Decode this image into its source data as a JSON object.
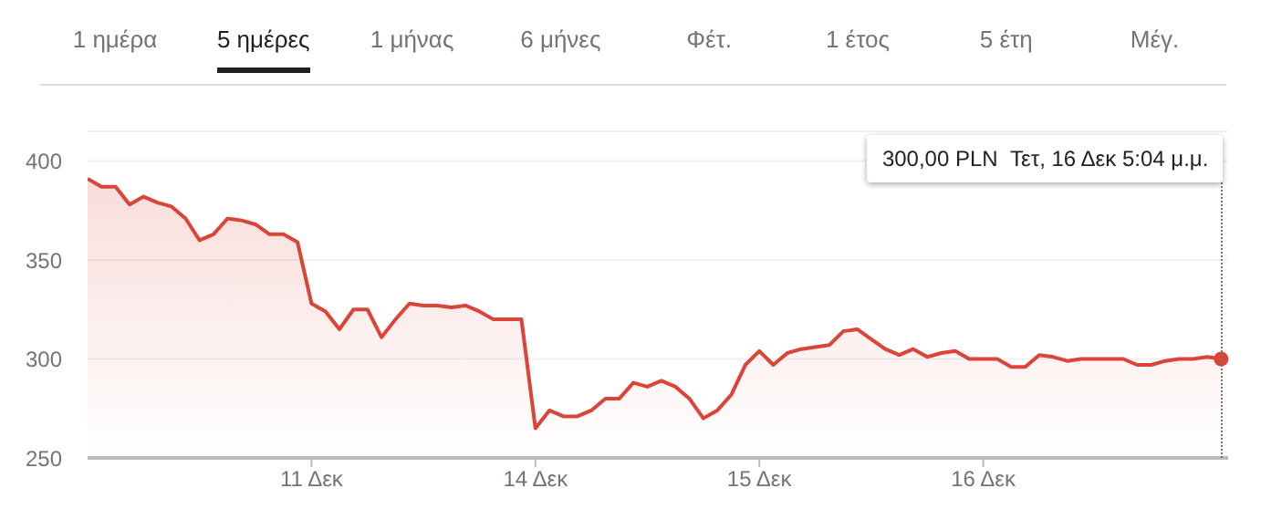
{
  "chart_data": {
    "type": "area",
    "categories": [
      null,
      null,
      null,
      null,
      null,
      null,
      null,
      null,
      null,
      null,
      null,
      null,
      null,
      null,
      null,
      null,
      "11 Δεκ",
      null,
      null,
      null,
      null,
      null,
      null,
      null,
      null,
      null,
      null,
      null,
      null,
      null,
      null,
      null,
      "14 Δεκ",
      null,
      null,
      null,
      null,
      null,
      null,
      null,
      null,
      null,
      null,
      null,
      null,
      null,
      null,
      null,
      "15 Δεκ",
      null,
      null,
      null,
      null,
      null,
      null,
      null,
      null,
      null,
      null,
      null,
      null,
      null,
      null,
      null,
      "16 Δεκ",
      null,
      null,
      null,
      null,
      null,
      null,
      null,
      null,
      null,
      null,
      null,
      null,
      null,
      null,
      null,
      null,
      null
    ],
    "series": [
      {
        "color": "#db4437",
        "values": [
          391,
          387,
          387,
          378,
          382,
          379,
          377,
          371,
          360,
          363,
          371,
          370,
          368,
          363,
          363,
          359,
          328,
          324,
          315,
          325,
          325,
          311,
          320,
          328,
          327,
          327,
          326,
          327,
          324,
          320,
          320,
          320,
          265,
          274,
          271,
          271,
          274,
          280,
          280,
          288,
          286,
          289,
          286,
          280,
          270,
          274,
          282,
          297,
          304,
          297,
          303,
          305,
          306,
          307,
          314,
          315,
          310,
          305,
          302,
          305,
          301,
          303,
          304,
          300,
          300,
          300,
          296,
          296,
          302,
          301,
          299,
          300,
          300,
          300,
          300,
          297,
          297,
          299,
          300,
          300,
          301,
          300
        ]
      }
    ],
    "ylim": [
      250,
      415
    ],
    "yticks": [
      250,
      300,
      350,
      400
    ],
    "grid": "y",
    "annotations": [
      "1 ημέρα",
      "5 ημέρες",
      "1 μήνας",
      "6 μήνες",
      "Φέτ.",
      "1 έτος",
      "5 έτη",
      "Μέγ.",
      "300,00 PLN  Τετ, 16 Δεκ 5:04 μ.μ."
    ]
  }
}
